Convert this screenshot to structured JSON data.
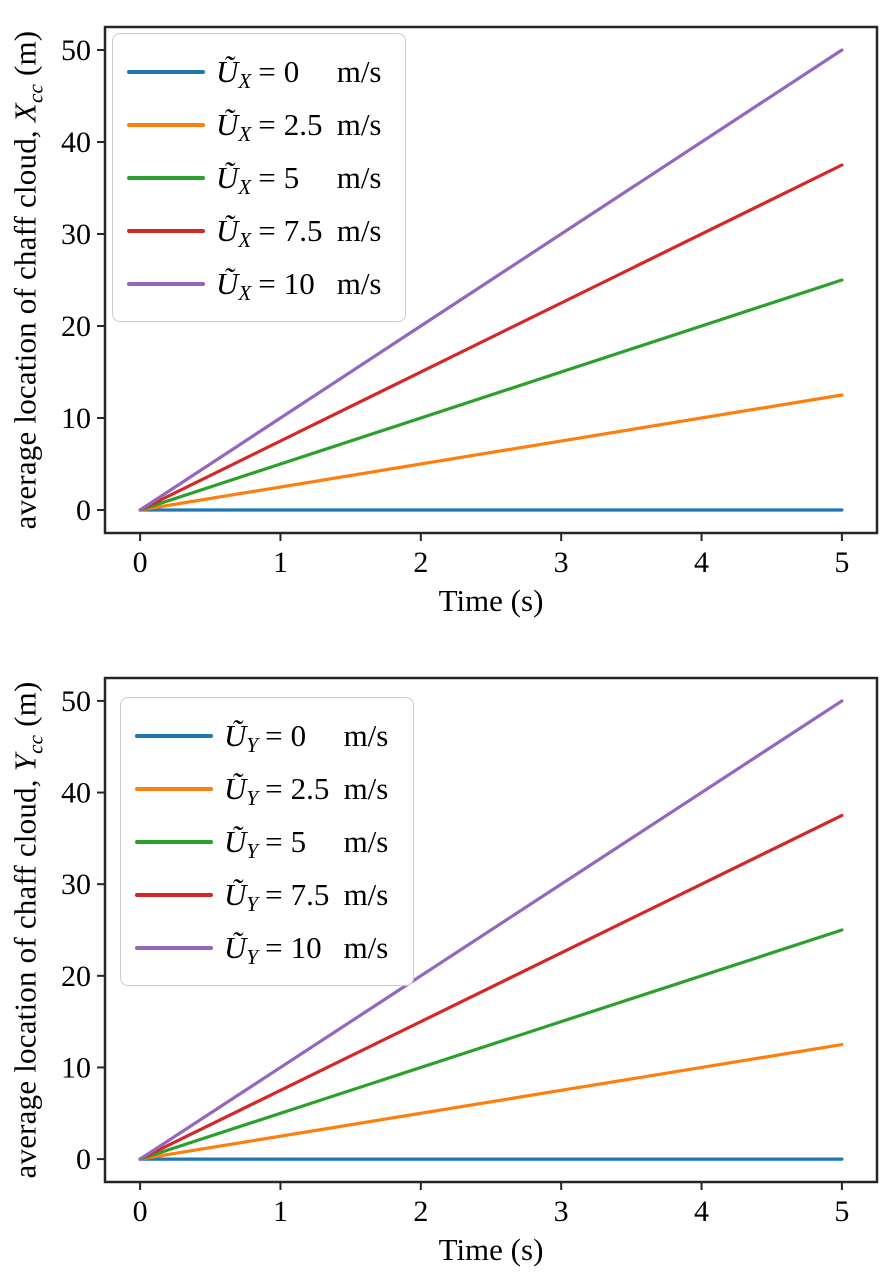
{
  "page": {
    "background": "#ffffff",
    "frame_color": "#262626"
  },
  "chart_data": [
    {
      "type": "line",
      "title": "",
      "xlabel": "Time (s)",
      "ylabel": "average location of chaff cloud, X_cc (m)",
      "ylabel_parts": {
        "prefix": "average location of chaff cloud, ",
        "var": "X",
        "sub": "cc",
        "suffix": " (m)"
      },
      "x": [
        0,
        5
      ],
      "series": [
        {
          "name": "Ũ_X = 0 m/s",
          "color": "#1f77b4",
          "values": [
            0,
            0
          ]
        },
        {
          "name": "Ũ_X = 2.5 m/s",
          "color": "#ff7f0e",
          "values": [
            0,
            12.5
          ]
        },
        {
          "name": "Ũ_X = 5 m/s",
          "color": "#2ca02c",
          "values": [
            0,
            25
          ]
        },
        {
          "name": "Ũ_X = 7.5 m/s",
          "color": "#d62728",
          "values": [
            0,
            37.5
          ]
        },
        {
          "name": "Ũ_X = 10 m/s",
          "color": "#9467bd",
          "values": [
            0,
            50
          ]
        }
      ],
      "legend_entries": [
        {
          "var": "Ũ",
          "sub": "X",
          "eq": "=",
          "value": "0",
          "unit": "m/s",
          "color": "#1f77b4"
        },
        {
          "var": "Ũ",
          "sub": "X",
          "eq": "=",
          "value": "2.5",
          "unit": "m/s",
          "color": "#ff7f0e"
        },
        {
          "var": "Ũ",
          "sub": "X",
          "eq": "=",
          "value": "5",
          "unit": "m/s",
          "color": "#2ca02c"
        },
        {
          "var": "Ũ",
          "sub": "X",
          "eq": "=",
          "value": "7.5",
          "unit": "m/s",
          "color": "#d62728"
        },
        {
          "var": "Ũ",
          "sub": "X",
          "eq": "=",
          "value": "10",
          "unit": "m/s",
          "color": "#9467bd"
        }
      ],
      "xticks": [
        0,
        1,
        2,
        3,
        4,
        5
      ],
      "yticks": [
        0,
        10,
        20,
        30,
        40,
        50
      ],
      "xlim": [
        -0.25,
        5.25
      ],
      "ylim": [
        -2.5,
        52.5
      ],
      "grid": false,
      "legend_position": "upper left"
    },
    {
      "type": "line",
      "title": "",
      "xlabel": "Time (s)",
      "ylabel": "average location of chaff cloud, Y_cc (m)",
      "ylabel_parts": {
        "prefix": "average location of chaff cloud, ",
        "var": "Y",
        "sub": "cc",
        "suffix": " (m)"
      },
      "x": [
        0,
        5
      ],
      "series": [
        {
          "name": "Ũ_Y = 0 m/s",
          "color": "#1f77b4",
          "values": [
            0,
            0
          ]
        },
        {
          "name": "Ũ_Y = 2.5 m/s",
          "color": "#ff7f0e",
          "values": [
            0,
            12.5
          ]
        },
        {
          "name": "Ũ_Y = 5 m/s",
          "color": "#2ca02c",
          "values": [
            0,
            25
          ]
        },
        {
          "name": "Ũ_Y = 7.5 m/s",
          "color": "#d62728",
          "values": [
            0,
            37.5
          ]
        },
        {
          "name": "Ũ_Y = 10 m/s",
          "color": "#9467bd",
          "values": [
            0,
            50
          ]
        }
      ],
      "legend_entries": [
        {
          "var": "Ũ",
          "sub": "Y",
          "eq": "=",
          "value": "0",
          "unit": "m/s",
          "color": "#1f77b4"
        },
        {
          "var": "Ũ",
          "sub": "Y",
          "eq": "=",
          "value": "2.5",
          "unit": "m/s",
          "color": "#ff7f0e"
        },
        {
          "var": "Ũ",
          "sub": "Y",
          "eq": "=",
          "value": "5",
          "unit": "m/s",
          "color": "#2ca02c"
        },
        {
          "var": "Ũ",
          "sub": "Y",
          "eq": "=",
          "value": "7.5",
          "unit": "m/s",
          "color": "#d62728"
        },
        {
          "var": "Ũ",
          "sub": "Y",
          "eq": "=",
          "value": "10",
          "unit": "m/s",
          "color": "#9467bd"
        }
      ],
      "xticks": [
        0,
        1,
        2,
        3,
        4,
        5
      ],
      "yticks": [
        0,
        10,
        20,
        30,
        40,
        50
      ],
      "xlim": [
        -0.25,
        5.25
      ],
      "ylim": [
        -2.5,
        52.5
      ],
      "grid": false,
      "legend_position": "upper left"
    }
  ]
}
